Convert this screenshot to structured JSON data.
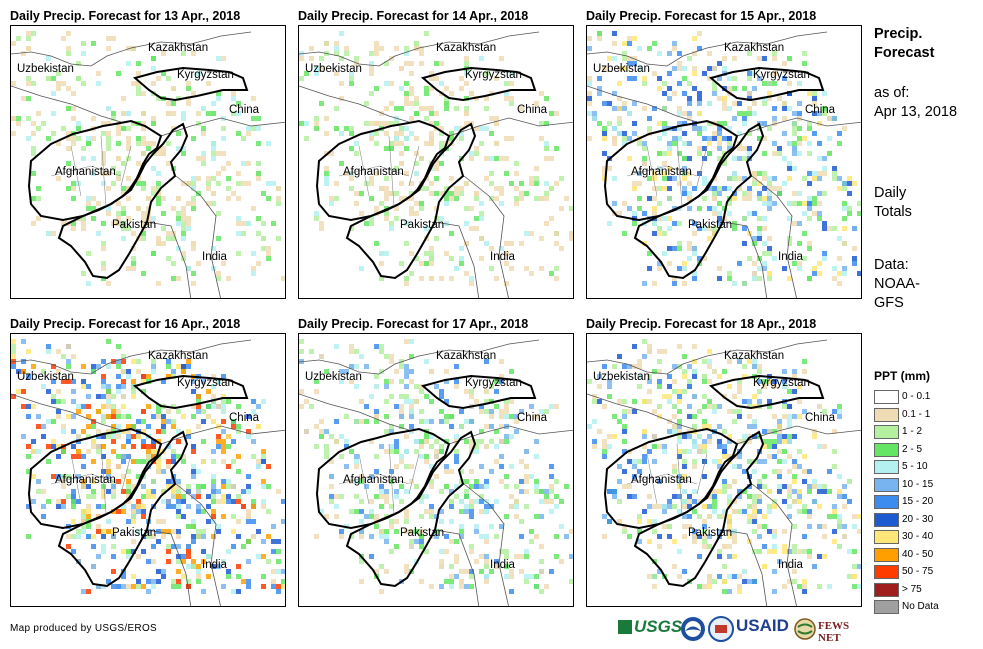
{
  "panels": [
    {
      "title": "Daily Precip. Forecast for 13 Apr., 2018",
      "intensity": 1
    },
    {
      "title": "Daily Precip. Forecast for 14 Apr., 2018",
      "intensity": 1
    },
    {
      "title": "Daily Precip. Forecast for 15 Apr., 2018",
      "intensity": 3
    },
    {
      "title": "Daily Precip. Forecast for 16 Apr., 2018",
      "intensity": 4
    },
    {
      "title": "Daily Precip. Forecast for 17 Apr., 2018",
      "intensity": 2
    },
    {
      "title": "Daily Precip. Forecast for 18 Apr., 2018",
      "intensity": 3
    }
  ],
  "countries": {
    "kazakhstan": "Kazakhstan",
    "uzbekistan": "Uzbekistan",
    "kyrgyzstan": "Kyrgyzstan",
    "china": "China",
    "afghanistan": "Afghanistan",
    "pakistan": "Pakistan",
    "india": "India"
  },
  "sidebar": {
    "title_line1": "Precip.",
    "title_line2": "Forecast",
    "asof_label": "as of:",
    "asof_date": "Apr 13, 2018",
    "totals_line1": "Daily",
    "totals_line2": "Totals",
    "data_line1": "Data:",
    "data_line2": "NOAA-",
    "data_line3": "GFS"
  },
  "legend": {
    "title": "PPT (mm)",
    "items": [
      {
        "label": "0 - 0.1",
        "color": "#ffffff"
      },
      {
        "label": "0.1 - 1",
        "color": "#f0dcb4"
      },
      {
        "label": "1 - 2",
        "color": "#b4f0a0"
      },
      {
        "label": "2 - 5",
        "color": "#64e664"
      },
      {
        "label": "5 - 10",
        "color": "#b4f0f0"
      },
      {
        "label": "10 - 15",
        "color": "#78b4f0"
      },
      {
        "label": "15 - 20",
        "color": "#3c8cf0"
      },
      {
        "label": "20 - 30",
        "color": "#1e5ad2"
      },
      {
        "label": "30 - 40",
        "color": "#ffe678"
      },
      {
        "label": "40 - 50",
        "color": "#ffa000"
      },
      {
        "label": "50 - 75",
        "color": "#ff3c00"
      },
      {
        "label": "> 75",
        "color": "#a01e1e"
      },
      {
        "label": "No Data",
        "color": "#a0a0a0"
      }
    ]
  },
  "footer": {
    "credit": "Map produced by USGS/EROS"
  },
  "logos": {
    "usgs": "USGS",
    "usaid": "USAID",
    "fewsnet": "FEWS NET"
  }
}
